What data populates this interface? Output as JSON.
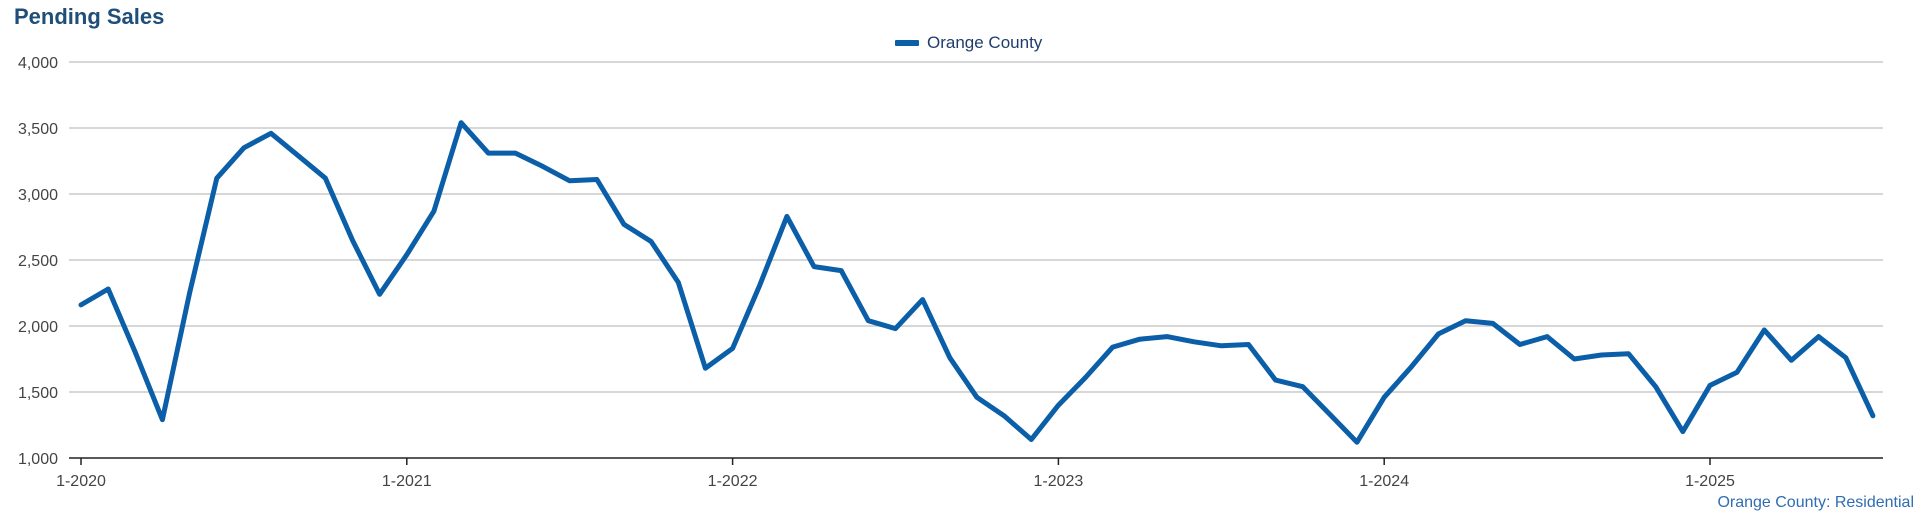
{
  "chart_data": {
    "type": "line",
    "title": "Pending Sales",
    "xlabel": "",
    "ylabel": "",
    "ylim": [
      1000,
      4000
    ],
    "yticks": [
      "1,000",
      "1,500",
      "2,000",
      "2,500",
      "3,000",
      "3,500",
      "4,000"
    ],
    "ytick_values": [
      1000,
      1500,
      2000,
      2500,
      3000,
      3500,
      4000
    ],
    "xticks": [
      "1-2020",
      "1-2021",
      "1-2022",
      "1-2023",
      "1-2024",
      "1-2025"
    ],
    "xtick_indices": [
      0,
      12,
      24,
      36,
      48,
      60
    ],
    "grid": true,
    "legend_position": "top-center",
    "color": "#0b5ea8",
    "series": [
      {
        "name": "Orange County",
        "values": [
          2160,
          2280,
          1800,
          1290,
          2250,
          3120,
          3350,
          3460,
          3290,
          3120,
          2650,
          2240,
          2540,
          2870,
          3540,
          3310,
          3310,
          3210,
          3100,
          3110,
          2770,
          2640,
          2330,
          1680,
          1830,
          2310,
          2830,
          2450,
          2420,
          2040,
          1980,
          2200,
          1760,
          1460,
          1320,
          1140,
          1400,
          1610,
          1840,
          1900,
          1920,
          1880,
          1850,
          1860,
          1590,
          1540,
          1330,
          1120,
          1460,
          1690,
          1940,
          2040,
          2020,
          1860,
          1920,
          1750,
          1780,
          1790,
          1540,
          1200,
          1550,
          1650,
          1970,
          1740,
          1920,
          1760,
          1320
        ]
      }
    ],
    "caption": "Orange County: Residential"
  }
}
